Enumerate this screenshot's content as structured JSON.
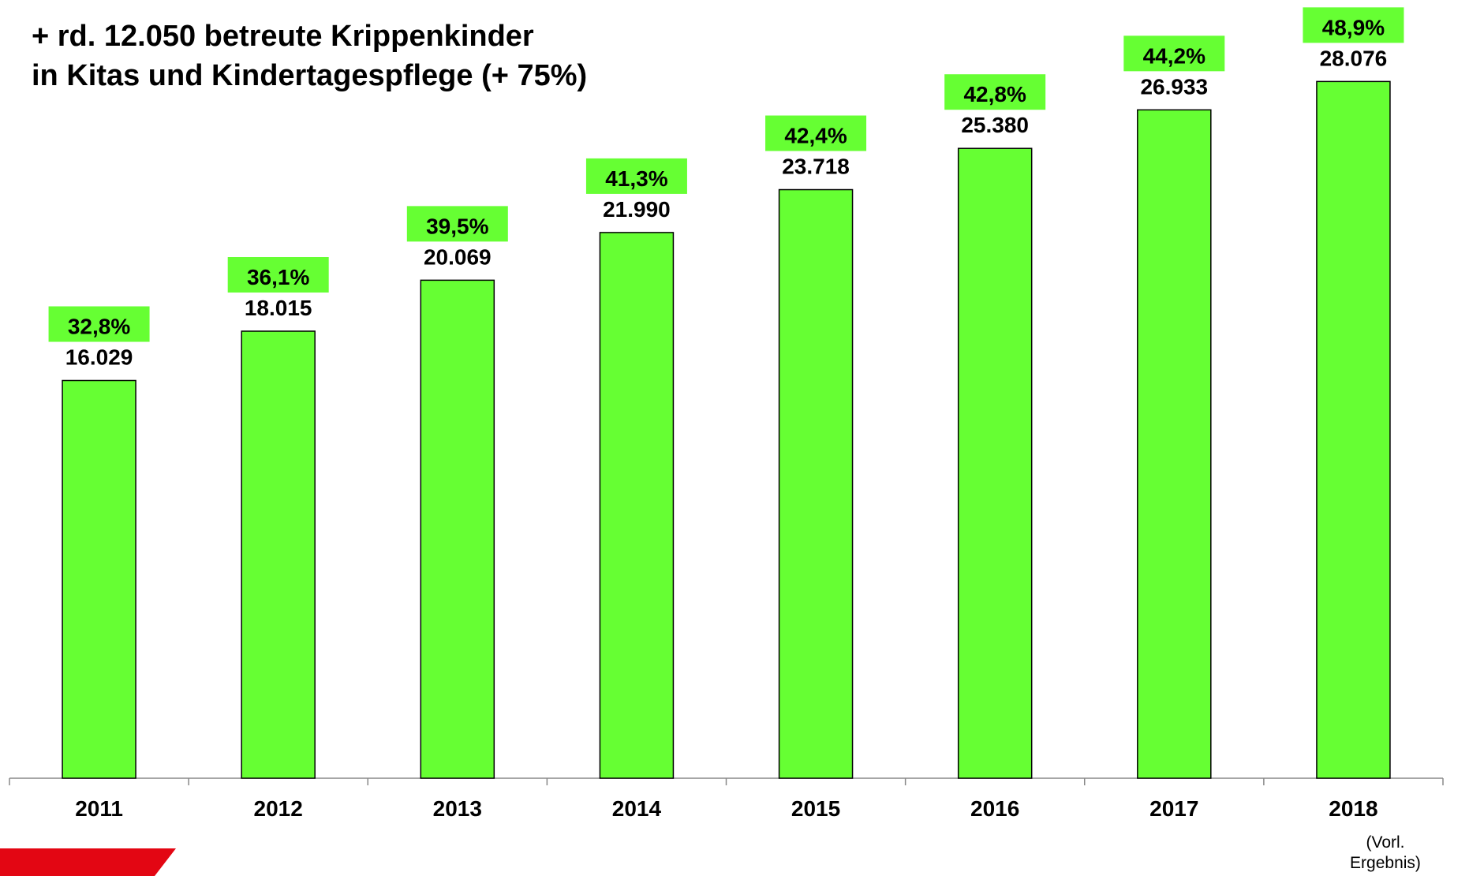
{
  "chart_data": {
    "type": "bar",
    "title": [
      "+ rd. 12.050 betreute Krippenkinder",
      "in Kitas und Kindertagespflege (+ 75%)"
    ],
    "categories": [
      "2011",
      "2012",
      "2013",
      "2014",
      "2015",
      "2016",
      "2017",
      "2018"
    ],
    "x_note": "(Vorl. Ergebnis)",
    "series": [
      {
        "name": "Krippenkinder",
        "color": "#66ff33",
        "values": [
          16029,
          18015,
          20069,
          21990,
          23718,
          25380,
          26933,
          28076
        ],
        "value_labels": [
          "16.029",
          "18.015",
          "20.069",
          "21.990",
          "23.718",
          "25.380",
          "26.933",
          "28.076"
        ]
      },
      {
        "name": "Quote",
        "color": "#66ff33",
        "values": [
          32.8,
          36.1,
          39.5,
          41.3,
          42.4,
          42.8,
          44.2,
          48.9
        ],
        "value_labels": [
          "32,8%",
          "36,1%",
          "39,5%",
          "41,3%",
          "42,4%",
          "42,8%",
          "44,2%",
          "48,9%"
        ]
      }
    ],
    "ylim": [
      0,
      31360
    ]
  }
}
